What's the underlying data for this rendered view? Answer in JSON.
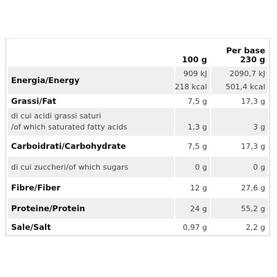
{
  "table": {
    "header": {
      "per100": "100 g",
      "perBase": [
        "Per base",
        "230 g"
      ]
    },
    "rows": [
      {
        "label": [
          "Energia/Energy"
        ],
        "per100": [
          "909 kJ",
          "218 kcal"
        ],
        "perBase": [
          "2090,7 kJ",
          "501,4 kcal"
        ]
      },
      {
        "label": [
          "Grassi/Fat"
        ],
        "per100": [
          "7,5 g"
        ],
        "perBase": [
          "17,3 g"
        ]
      },
      {
        "label": [
          "di cui acidi grassi saturi",
          "/of which saturated fatty acids"
        ],
        "per100": [
          "1,3 g"
        ],
        "perBase": [
          "3 g"
        ]
      },
      {
        "label": [
          "Carboidrati/Carbohydrate"
        ],
        "per100": [
          "7,5 g"
        ],
        "perBase": [
          "17,3 g"
        ]
      },
      {
        "label": [
          "di cui zuccheri/of which sugars"
        ],
        "per100": [
          "0 g"
        ],
        "perBase": [
          "0 g"
        ]
      },
      {
        "label": [
          "Fibre/Fiber"
        ],
        "per100": [
          "12 g"
        ],
        "perBase": [
          "27,6 g"
        ]
      },
      {
        "label": [
          "Proteine/Protein"
        ],
        "per100": [
          "24 g"
        ],
        "perBase": [
          "55,2 g"
        ]
      },
      {
        "label": [
          "Sale/Salt"
        ],
        "per100": [
          "0,97 g"
        ],
        "perBase": [
          "2,2 g"
        ]
      }
    ]
  }
}
